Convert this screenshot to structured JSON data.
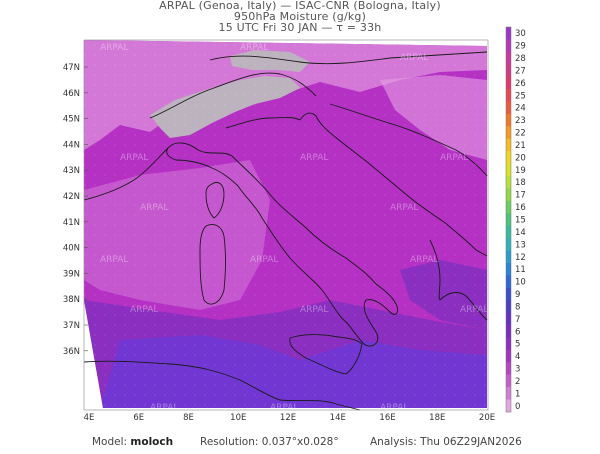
{
  "header": {
    "line1": "ARPAL (Genoa, Italy)  —  ISAC-CNR (Bologna, Italy)",
    "line2": "950hPa Moisture (g/kg)",
    "line3": "15 UTC Fri 30 JAN  —  τ = 33h"
  },
  "map": {
    "lon_ticks": [
      "4E",
      "6E",
      "8E",
      "10E",
      "12E",
      "14E",
      "16E",
      "18E",
      "20E"
    ],
    "lat_ticks": [
      "47N",
      "46N",
      "45N",
      "44N",
      "43N",
      "42N",
      "41N",
      "40N",
      "39N",
      "38N",
      "37N",
      "36N"
    ],
    "watermark": "ARPAL",
    "colors": {
      "base": "#b531c4",
      "light": "#d478d8",
      "pale": "#e4a0e4",
      "grey": "#bdb3bf",
      "dark": "#8a2fc0",
      "blue": "#6a3bd8",
      "border": "#1a1a1a"
    }
  },
  "colorbar": {
    "labels": [
      "30",
      "29",
      "28",
      "27",
      "26",
      "25",
      "24",
      "23",
      "22",
      "21",
      "20",
      "19",
      "18",
      "17",
      "16",
      "15",
      "14",
      "13",
      "12",
      "11",
      "10",
      "9",
      "8",
      "7",
      "6",
      "5",
      "4",
      "3",
      "2",
      "1",
      "0"
    ],
    "colors": [
      "#9a38c5",
      "#b33ab8",
      "#c73aa0",
      "#d13a88",
      "#db3a6e",
      "#e24a56",
      "#e95d3e",
      "#f0782a",
      "#f39a24",
      "#f5bc22",
      "#f1d724",
      "#d9e22a",
      "#b6df38",
      "#8fd84a",
      "#6ace62",
      "#4cc47e",
      "#36bc9c",
      "#2cb3b8",
      "#2a9ecb",
      "#2a84d3",
      "#2f67d3",
      "#3a4fcf",
      "#4d3ec8",
      "#6332c2",
      "#7a2cbe",
      "#8e2ebc",
      "#a335bd",
      "#b645c2",
      "#c45ec9",
      "#d27ed3",
      "#e2a6e0"
    ]
  },
  "footer": {
    "model_label": "Model:",
    "model_value": "moloch",
    "resolution_label": "Resolution:",
    "resolution_value": "0.037°x0.028°",
    "analysis_label": "Analysis:",
    "analysis_value": "Thu 06Z29JAN2026"
  }
}
